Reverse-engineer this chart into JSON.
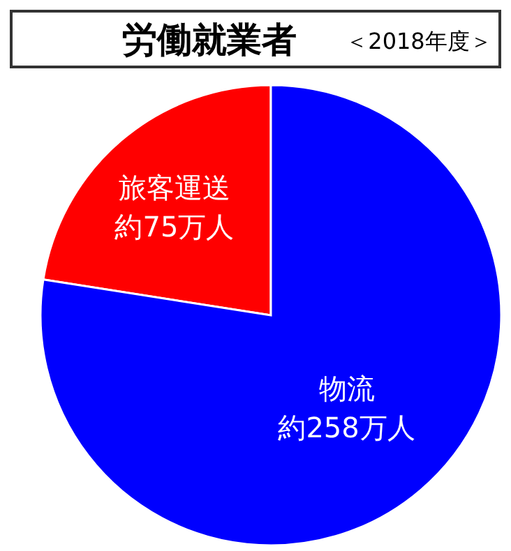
{
  "chart_data": {
    "type": "pie",
    "title": "労働就業者",
    "subtitle": "＜2018年度＞",
    "categories": [
      "旅客運送",
      "物流"
    ],
    "values": [
      75,
      258
    ],
    "colors": [
      "#ff0000",
      "#0000ff"
    ],
    "value_labels": [
      "約75万人",
      "約258万人"
    ]
  }
}
